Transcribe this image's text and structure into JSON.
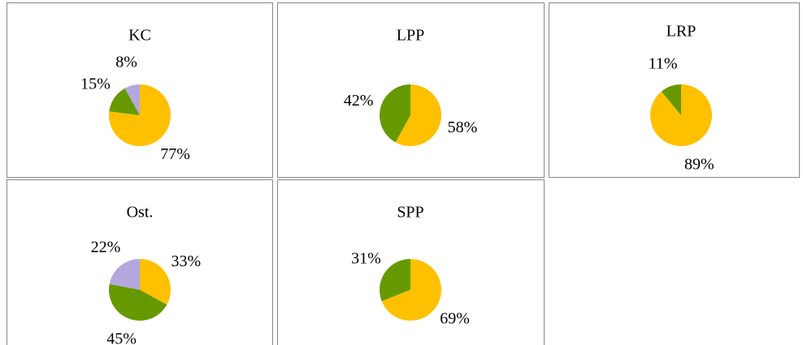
{
  "chart_data": [
    {
      "type": "pie",
      "title": "KC",
      "values": [
        77,
        15,
        8
      ],
      "value_labels": [
        "77%",
        "15%",
        "8%"
      ],
      "colors": [
        "#ffc000",
        "#669900",
        "#b4a7de"
      ]
    },
    {
      "type": "pie",
      "title": "LPP",
      "values": [
        58,
        42
      ],
      "value_labels": [
        "58%",
        "42%"
      ],
      "colors": [
        "#ffc000",
        "#669900"
      ]
    },
    {
      "type": "pie",
      "title": "LRP",
      "values": [
        89,
        11
      ],
      "value_labels": [
        "89%",
        "11%"
      ],
      "colors": [
        "#ffc000",
        "#669900"
      ]
    },
    {
      "type": "pie",
      "title": "Ost.",
      "values": [
        33,
        45,
        22
      ],
      "value_labels": [
        "33%",
        "45%",
        "22%"
      ],
      "colors": [
        "#ffc000",
        "#669900",
        "#b4a7de"
      ]
    },
    {
      "type": "pie",
      "title": "SPP",
      "values": [
        69,
        31
      ],
      "value_labels": [
        "69%",
        "31%"
      ],
      "colors": [
        "#ffc000",
        "#669900"
      ]
    }
  ]
}
